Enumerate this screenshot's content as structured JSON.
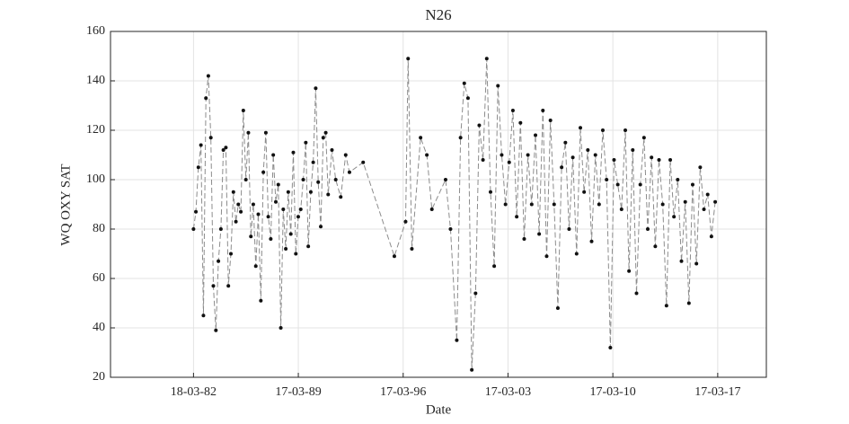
{
  "chart_data": {
    "type": "line",
    "title": "N26",
    "x_label": "Date",
    "y_label": "WQ OXY SAT",
    "xlim": [
      "1976-09-01",
      "2020-06-15"
    ],
    "xticks": [
      {
        "value": "1982-03-18",
        "label": "18-03-82"
      },
      {
        "value": "1989-03-17",
        "label": "17-03-89"
      },
      {
        "value": "1996-03-17",
        "label": "17-03-96"
      },
      {
        "value": "2003-03-17",
        "label": "17-03-03"
      },
      {
        "value": "2010-03-17",
        "label": "17-03-10"
      },
      {
        "value": "2017-03-17",
        "label": "17-03-17"
      }
    ],
    "ylim": [
      20,
      160
    ],
    "yticks": [
      20,
      40,
      60,
      80,
      100,
      120,
      140,
      160
    ],
    "grid": true,
    "line_color": "#8c8c8c",
    "marker_color": "#111111",
    "x": [
      "1982-03-18",
      "1982-05-15",
      "1982-07-15",
      "1982-09-15",
      "1982-11-15",
      "1983-01-15",
      "1983-03-15",
      "1983-05-15",
      "1983-07-15",
      "1983-09-15",
      "1983-11-15",
      "1984-01-15",
      "1984-03-15",
      "1984-05-15",
      "1984-07-15",
      "1984-09-15",
      "1984-11-15",
      "1985-01-15",
      "1985-03-15",
      "1985-05-15",
      "1985-07-15",
      "1985-09-15",
      "1985-11-15",
      "1986-01-15",
      "1986-03-15",
      "1986-05-15",
      "1986-07-15",
      "1986-09-15",
      "1986-11-15",
      "1987-01-15",
      "1987-03-15",
      "1987-05-15",
      "1987-07-15",
      "1987-09-15",
      "1987-11-15",
      "1988-01-15",
      "1988-03-15",
      "1988-05-15",
      "1988-07-15",
      "1988-09-15",
      "1988-11-15",
      "1989-01-15",
      "1989-03-15",
      "1989-05-15",
      "1989-07-15",
      "1989-09-15",
      "1989-11-15",
      "1990-01-15",
      "1990-03-15",
      "1990-05-15",
      "1990-07-15",
      "1990-09-15",
      "1990-11-15",
      "1991-01-15",
      "1991-03-15",
      "1991-06-15",
      "1991-09-15",
      "1992-01-15",
      "1992-05-15",
      "1992-08-15",
      "1993-07-15",
      "1995-08-15",
      "1996-05-15",
      "1996-07-15",
      "1996-10-15",
      "1997-05-15",
      "1997-10-15",
      "1998-02-15",
      "1999-01-15",
      "1999-05-15",
      "1999-10-15",
      "2000-01-15",
      "2000-04-15",
      "2000-07-15",
      "2000-10-15",
      "2001-01-15",
      "2001-04-15",
      "2001-07-15",
      "2001-10-15",
      "2002-01-15",
      "2002-04-15",
      "2002-07-15",
      "2002-10-15",
      "2003-01-15",
      "2003-04-15",
      "2003-07-15",
      "2003-10-15",
      "2004-01-15",
      "2004-04-15",
      "2004-07-15",
      "2004-10-15",
      "2005-01-15",
      "2005-04-15",
      "2005-07-15",
      "2005-10-15",
      "2006-01-15",
      "2006-04-15",
      "2006-07-15",
      "2006-10-15",
      "2007-01-15",
      "2007-04-15",
      "2007-07-15",
      "2007-10-15",
      "2008-01-15",
      "2008-04-15",
      "2008-07-15",
      "2008-10-15",
      "2009-01-15",
      "2009-04-15",
      "2009-07-15",
      "2009-10-15",
      "2010-01-15",
      "2010-04-15",
      "2010-07-15",
      "2010-10-15",
      "2011-01-15",
      "2011-04-15",
      "2011-07-15",
      "2011-10-15",
      "2012-01-15",
      "2012-04-15",
      "2012-07-15",
      "2012-10-15",
      "2013-01-15",
      "2013-04-15",
      "2013-07-15",
      "2013-10-15",
      "2014-01-15",
      "2014-04-15",
      "2014-07-15",
      "2014-10-15",
      "2015-01-15",
      "2015-04-15",
      "2015-07-15",
      "2015-10-15",
      "2016-01-15",
      "2016-04-15",
      "2016-07-15",
      "2016-10-15",
      "2017-01-15"
    ],
    "values": [
      80,
      87,
      105,
      114,
      45,
      133,
      142,
      117,
      57,
      39,
      67,
      80,
      112,
      113,
      57,
      70,
      95,
      83,
      90,
      87,
      128,
      100,
      119,
      77,
      90,
      65,
      86,
      51,
      103,
      119,
      85,
      76,
      110,
      91,
      98,
      40,
      88,
      72,
      95,
      78,
      111,
      70,
      85,
      88,
      100,
      115,
      73,
      95,
      107,
      137,
      99,
      81,
      117,
      119,
      94,
      112,
      100,
      93,
      110,
      103,
      107,
      69,
      83,
      149,
      72,
      117,
      110,
      88,
      100,
      80,
      35,
      117,
      139,
      133,
      23,
      54,
      122,
      108,
      149,
      95,
      65,
      138,
      110,
      90,
      107,
      128,
      85,
      123,
      76,
      110,
      90,
      118,
      78,
      128,
      69,
      124,
      90,
      48,
      105,
      115,
      80,
      109,
      70,
      121,
      95,
      112,
      75,
      110,
      90,
      120,
      100,
      32,
      108,
      98,
      88,
      120,
      63,
      112,
      54,
      98,
      117,
      80,
      109,
      73,
      108,
      90,
      49,
      108,
      85,
      100,
      67,
      91,
      50,
      98,
      66,
      105,
      88,
      94,
      77,
      91
    ]
  }
}
